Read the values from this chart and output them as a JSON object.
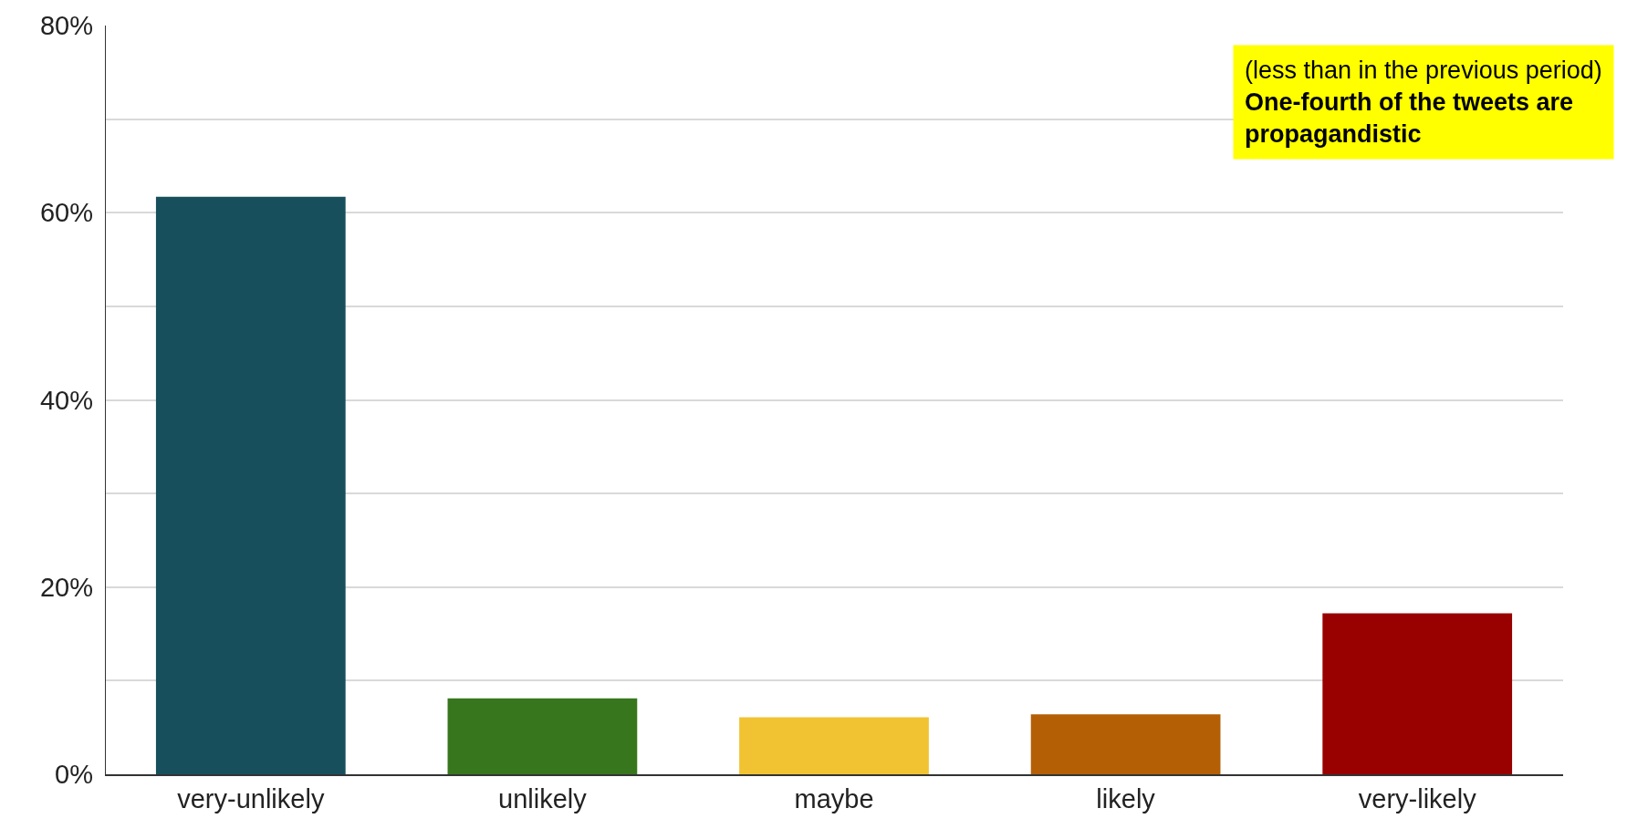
{
  "chart_data": {
    "type": "bar",
    "categories": [
      "very-unlikely",
      "unlikely",
      "maybe",
      "likely",
      "very-likely"
    ],
    "values": [
      61.7,
      8.1,
      6.1,
      6.4,
      17.2
    ],
    "colors": [
      "#174f5c",
      "#38761d",
      "#f1c232",
      "#b45f06",
      "#990000"
    ],
    "ylim": [
      0,
      80
    ],
    "yticks": [
      {
        "value": 0,
        "label": "0%"
      },
      {
        "value": 10,
        "label": null
      },
      {
        "value": 20,
        "label": "20%"
      },
      {
        "value": 30,
        "label": null
      },
      {
        "value": 40,
        "label": "40%"
      },
      {
        "value": 50,
        "label": null
      },
      {
        "value": 60,
        "label": "60%"
      },
      {
        "value": 70,
        "label": null
      },
      {
        "value": 80,
        "label": "80%"
      }
    ],
    "grid": "y",
    "annotations": [
      "(less than in the previous period)",
      "One-fourth of the tweets are propagandistic"
    ]
  }
}
